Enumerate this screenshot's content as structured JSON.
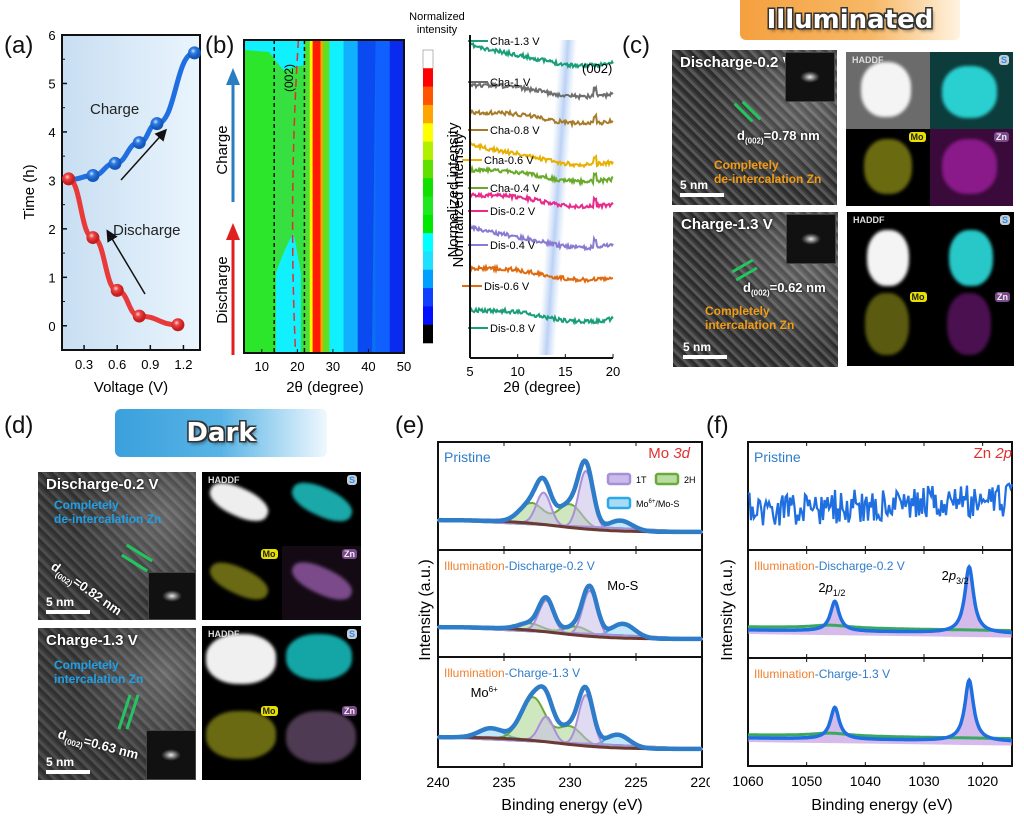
{
  "panel_labels": {
    "a": "(a)",
    "b": "(b)",
    "c": "(c)",
    "d": "(d)",
    "e": "(e)",
    "f": "(f)"
  },
  "banners": {
    "illuminated": "Illuminated",
    "dark": "Dark"
  },
  "colors": {
    "charge": "#1f6fe0",
    "discharge": "#e83a3a",
    "envelope": "#2f7cc9",
    "t1": "#a88fd8",
    "h2": "#6aaa3a",
    "mo6": "#2aa8e8",
    "bg": "#6b3a32"
  },
  "chart_data": [
    {
      "id": "a",
      "type": "line",
      "xlabel": "Voltage (V)",
      "ylabel": "Time (h)",
      "xlim": [
        0.1,
        1.35
      ],
      "ylim": [
        -0.5,
        6
      ],
      "xticks": [
        "0.3",
        "0.6",
        "0.9",
        "1.2"
      ],
      "xtick_values": [
        0.3,
        0.6,
        0.9,
        1.2
      ],
      "yticks": [
        "0",
        "1",
        "2",
        "3",
        "4",
        "5",
        "6"
      ],
      "ytick_values": [
        0,
        1,
        2,
        3,
        4,
        5,
        6
      ],
      "series": [
        {
          "name": "Charge",
          "x": [
            0.18,
            0.38,
            0.58,
            0.8,
            0.96,
            1.3
          ],
          "y": [
            3.02,
            3.1,
            3.35,
            3.78,
            4.17,
            5.63
          ]
        },
        {
          "name": "Discharge",
          "x": [
            0.16,
            0.38,
            0.6,
            0.8,
            1.15
          ],
          "y": [
            3.03,
            1.82,
            0.73,
            0.2,
            0.02
          ]
        }
      ],
      "annotations": [
        "Charge",
        "Discharge"
      ]
    },
    {
      "id": "b",
      "type": "heatmap",
      "xlabel": "2θ (degree)",
      "ylabel_left_top": "Charge",
      "ylabel_left_bottom": "Discharge",
      "xlim": [
        5,
        50
      ],
      "xticks": [
        "10",
        "20",
        "30",
        "40",
        "50"
      ],
      "xtick_values": [
        10,
        20,
        30,
        40,
        50
      ],
      "annotation": "(002)",
      "dashed_lines_deg": [
        13.5,
        22
      ],
      "colorbar": {
        "title": "Normalized intensity",
        "label": "Normalized intensity",
        "colors": [
          "#ffffff",
          "#ff0000",
          "#ff5500",
          "#ffa500",
          "#ffff00",
          "#b0f000",
          "#60e000",
          "#10e000",
          "#20e820",
          "#00e800",
          "#00ffff",
          "#20e0ff",
          "#00a0ff",
          "#1040ff",
          "#0010ff",
          "#000000"
        ]
      },
      "bands": [
        {
          "from": 5,
          "to": 13.5,
          "color": "#2be62b"
        },
        {
          "from": 13.5,
          "to": 22,
          "color": "#36e040"
        },
        {
          "from": 22,
          "to": 23.5,
          "color": "#50e030"
        },
        {
          "from": 23.5,
          "to": 24.3,
          "color": "#ffff00"
        },
        {
          "from": 24.3,
          "to": 26.5,
          "color": "#ff1a00"
        },
        {
          "from": 26.5,
          "to": 27.2,
          "color": "#ffa000"
        },
        {
          "from": 27.2,
          "to": 29,
          "color": "#60e020"
        },
        {
          "from": 29,
          "to": 33,
          "color": "#10f0ff"
        },
        {
          "from": 33,
          "to": 37,
          "color": "#10b0ff"
        },
        {
          "from": 37,
          "to": 42,
          "color": "#0a70f0"
        },
        {
          "from": 42,
          "to": 46,
          "color": "#1060ff"
        },
        {
          "from": 46,
          "to": 50,
          "color": "#0a2af0"
        }
      ]
    },
    {
      "id": "b-xrd",
      "type": "line",
      "xlabel": "2θ (degree)",
      "ylabel": "Normalized intensity",
      "xlim": [
        5,
        20
      ],
      "xticks": [
        "5",
        "10",
        "15",
        "20"
      ],
      "xtick_values": [
        5,
        10,
        15,
        20
      ],
      "annotation": "(002)",
      "series": [
        {
          "name": "Cha-1.3 V",
          "color": "#1a9e7a"
        },
        {
          "name": "Cha-1 V",
          "color": "#6e6e6e"
        },
        {
          "name": "Cha-0.8 V",
          "color": "#a67c2a"
        },
        {
          "name": "Cha-0.6 V",
          "color": "#e8b000"
        },
        {
          "name": "Cha-0.4 V",
          "color": "#6aaa2a"
        },
        {
          "name": "Dis-0.2 V",
          "color": "#e82a8a"
        },
        {
          "name": "Dis-0.4 V",
          "color": "#8a7ad0"
        },
        {
          "name": "Dis-0.6 V",
          "color": "#e06a10"
        },
        {
          "name": "Dis-0.8 V",
          "color": "#1a9e7a"
        }
      ]
    },
    {
      "id": "e",
      "type": "line",
      "xlabel": "Binding energy (eV)",
      "ylabel": "Intensity (a.u.)",
      "xlim": [
        240,
        220
      ],
      "xticks": [
        "240",
        "235",
        "230",
        "225",
        "220"
      ],
      "xtick_values": [
        240,
        235,
        230,
        225,
        220
      ],
      "title": "Mo 3d",
      "legend": [
        "1T",
        "2H",
        "Mo6+/Mo-S"
      ],
      "panels": [
        {
          "label": "Pristine",
          "peaks": {
            "t1": [
              [
                232.0,
                0.55
              ],
              [
                228.8,
                1.0
              ]
            ],
            "h2": [
              [
                232.9,
                0.35
              ],
              [
                230.0,
                0.4
              ]
            ],
            "mo6": [
              [
                226.2,
                0.18
              ]
            ]
          }
        },
        {
          "label_a": "Illumination",
          "label_b": "-Discharge-0.2 V",
          "note": "Mo-S",
          "peaks": {
            "t1": [
              [
                231.8,
                0.55
              ],
              [
                228.5,
                0.8
              ]
            ],
            "h2": [
              [
                233.0,
                0.12
              ],
              [
                229.5,
                0.15
              ]
            ],
            "mo6": [
              [
                226.0,
                0.25
              ]
            ]
          }
        },
        {
          "label_a": "Illumination",
          "label_b": "-Charge-1.3 V",
          "note": "Mo6+",
          "peaks": {
            "t1": [
              [
                231.8,
                0.42
              ],
              [
                228.8,
                0.85
              ]
            ],
            "h2": [
              [
                232.8,
                0.72
              ],
              [
                230.0,
                0.3
              ]
            ],
            "mo6": [
              [
                236.0,
                0.16
              ],
              [
                226.4,
                0.22
              ]
            ]
          }
        }
      ]
    },
    {
      "id": "f",
      "type": "line",
      "xlabel": "Binding energy (eV)",
      "ylabel": "Intensity (a.u.)",
      "xlim": [
        1060,
        1015
      ],
      "xticks": [
        "1060",
        "1050",
        "1040",
        "1030",
        "1020"
      ],
      "xtick_values": [
        1060,
        1050,
        1040,
        1030,
        1020
      ],
      "title": "Zn 2p",
      "panels": [
        {
          "label": "Pristine",
          "kind": "noise"
        },
        {
          "label_a": "Illumination",
          "label_b": "-Discharge-0.2 V",
          "peaks": [
            [
              1045.2,
              0.45
            ],
            [
              1022.3,
              1.0
            ]
          ],
          "notes": [
            "2p1/2",
            "2p3/2"
          ]
        },
        {
          "label_a": "Illumination",
          "label_b": "-Charge-1.3 V",
          "peaks": [
            [
              1045.2,
              0.48
            ],
            [
              1022.3,
              0.92
            ]
          ]
        }
      ]
    }
  ],
  "tem_illuminated": [
    {
      "title": "Discharge-0.2 V",
      "d_label": "d",
      "d_sub": "(002)",
      "d_value": "=0.78 nm",
      "note_line1": "Completely",
      "note_line2": "de-intercalation Zn",
      "scale": "5 nm"
    },
    {
      "title": "Charge-1.3 V",
      "d_label": "d",
      "d_sub": "(002)",
      "d_value": "=0.62 nm",
      "note_line1": "Completely",
      "note_line2": "intercalation Zn",
      "scale": "5 nm"
    }
  ],
  "tem_dark": [
    {
      "title": "Discharge-0.2 V",
      "d_label": "d",
      "d_sub": "(002)",
      "d_value": "=0.82 nm",
      "note_line1": "Completely",
      "note_line2": "de-intercalation Zn",
      "scale": "5 nm"
    },
    {
      "title": "Charge-1.3 V",
      "d_label": "d",
      "d_sub": "(002)",
      "d_value": "=0.63 nm",
      "note_line1": "Completely",
      "note_line2": "intercalation Zn",
      "scale": "5 nm"
    }
  ],
  "eds_tags": {
    "haddf": "HADDF",
    "s": "S",
    "mo": "Mo",
    "zn": "Zn"
  }
}
